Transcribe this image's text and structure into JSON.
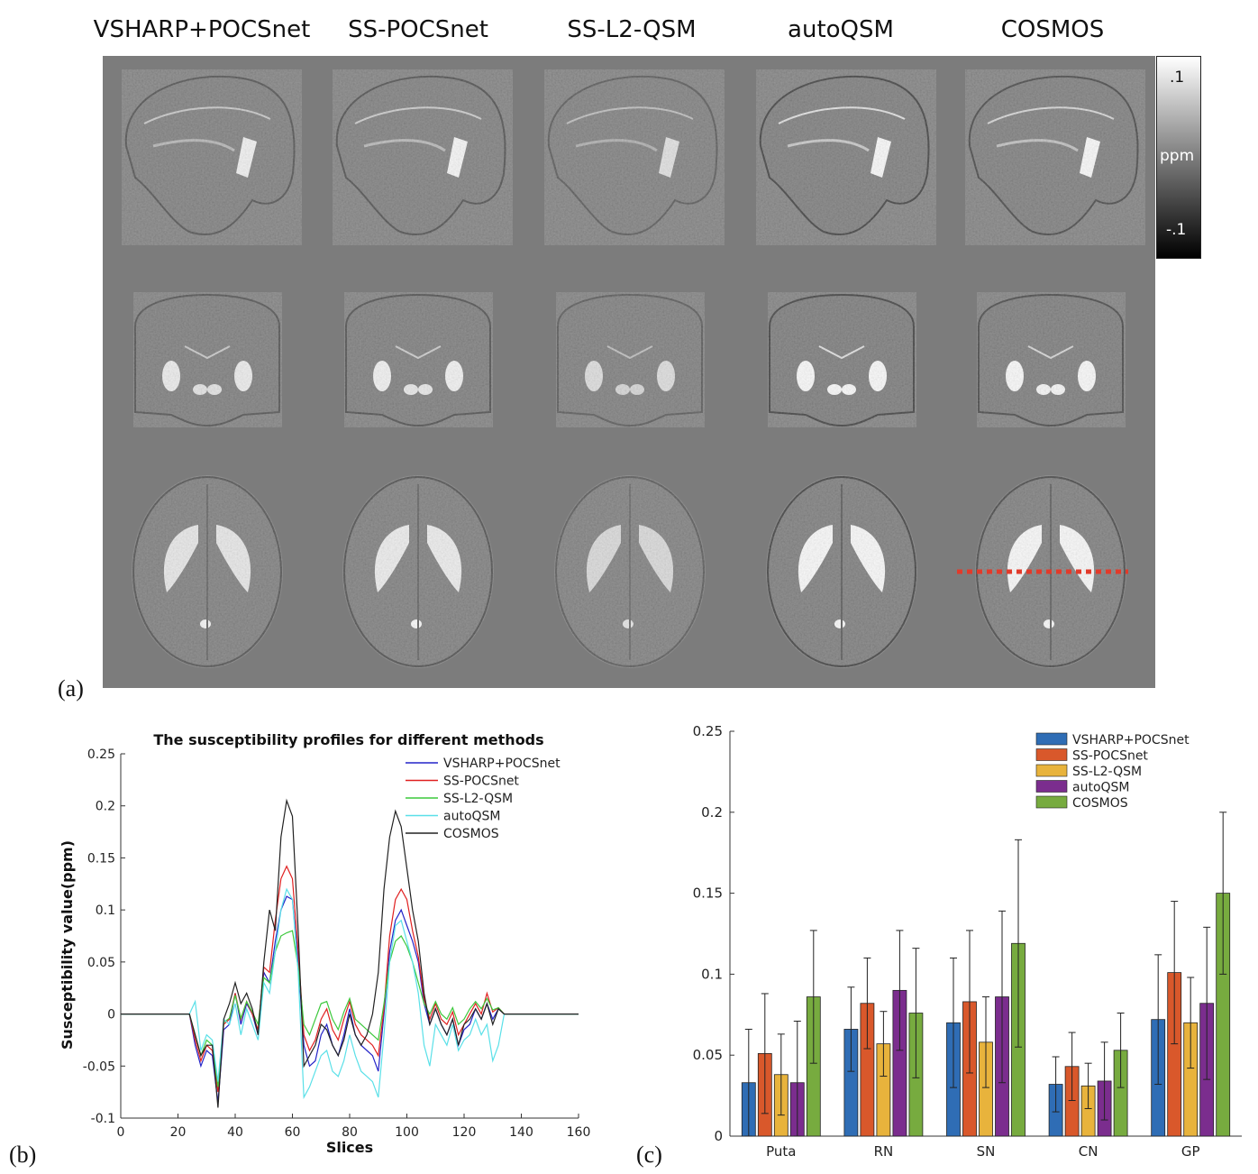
{
  "panel_a": {
    "column_titles": [
      "VSHARP+POCSnet",
      "SS-POCSnet",
      "SS-L2-QSM",
      "autoQSM",
      "COSMOS"
    ],
    "colorbar": {
      "top": ".1",
      "mid": "ppm",
      "bottom": "-.1"
    },
    "rows": [
      "sagittal",
      "coronal",
      "axial"
    ],
    "marker_color": "#e23a2a"
  },
  "panel_labels": {
    "a": "(a)",
    "b": "(b)",
    "c": "(c)"
  },
  "chart_data": [
    {
      "type": "line",
      "title": "The susceptibility profiles for different methods",
      "xlabel": "Slices",
      "ylabel": "Susceptibility value(ppm)",
      "xlim": [
        0,
        160
      ],
      "ylim": [
        -0.1,
        0.25
      ],
      "xticks": [
        "0",
        "20",
        "40",
        "60",
        "80",
        "100",
        "120",
        "140",
        "160"
      ],
      "yticks": [
        "-0.1",
        "-0.05",
        "0",
        "0.05",
        "0.1",
        "0.15",
        "0.2",
        "0.25"
      ],
      "legend_position": "top-right",
      "series": [
        {
          "name": "VSHARP+POCSnet",
          "color": "#2424c8",
          "x": [
            0,
            24,
            26,
            28,
            30,
            32,
            34,
            36,
            38,
            40,
            42,
            44,
            46,
            48,
            50,
            52,
            54,
            56,
            58,
            60,
            62,
            64,
            66,
            68,
            70,
            72,
            74,
            76,
            78,
            80,
            82,
            84,
            86,
            88,
            90,
            92,
            94,
            96,
            98,
            100,
            102,
            104,
            106,
            108,
            110,
            112,
            114,
            116,
            118,
            120,
            122,
            124,
            126,
            128,
            130,
            132,
            134,
            160
          ],
          "y": [
            0,
            0,
            -0.03,
            -0.05,
            -0.035,
            -0.04,
            -0.085,
            -0.015,
            -0.01,
            0.02,
            -0.01,
            0.01,
            0.0,
            -0.02,
            0.04,
            0.03,
            0.07,
            0.1,
            0.113,
            0.11,
            0.05,
            -0.03,
            -0.05,
            -0.045,
            -0.02,
            -0.01,
            -0.03,
            -0.04,
            -0.02,
            0.005,
            -0.02,
            -0.03,
            -0.035,
            -0.04,
            -0.055,
            0.0,
            0.06,
            0.09,
            0.1,
            0.085,
            0.07,
            0.05,
            0.01,
            -0.01,
            0.005,
            -0.01,
            -0.02,
            -0.005,
            -0.03,
            -0.015,
            -0.01,
            0.005,
            -0.005,
            0.01,
            -0.005,
            0.005,
            0,
            0
          ]
        },
        {
          "name": "SS-POCSnet",
          "color": "#e02020",
          "x": [
            0,
            24,
            26,
            28,
            30,
            32,
            34,
            36,
            38,
            40,
            42,
            44,
            46,
            48,
            50,
            52,
            54,
            56,
            58,
            60,
            62,
            64,
            66,
            68,
            70,
            72,
            74,
            76,
            78,
            80,
            82,
            84,
            86,
            88,
            90,
            92,
            94,
            96,
            98,
            100,
            102,
            104,
            106,
            108,
            110,
            112,
            114,
            116,
            118,
            120,
            122,
            124,
            126,
            128,
            130,
            132,
            134,
            160
          ],
          "y": [
            0,
            0,
            -0.025,
            -0.045,
            -0.03,
            -0.035,
            -0.075,
            -0.01,
            -0.005,
            0.02,
            -0.005,
            0.012,
            0.0,
            -0.015,
            0.045,
            0.04,
            0.09,
            0.13,
            0.142,
            0.13,
            0.06,
            -0.02,
            -0.035,
            -0.025,
            -0.005,
            0.005,
            -0.015,
            -0.025,
            -0.005,
            0.012,
            -0.01,
            -0.02,
            -0.025,
            -0.03,
            -0.04,
            0.005,
            0.075,
            0.11,
            0.12,
            0.11,
            0.08,
            0.055,
            0.015,
            -0.005,
            0.01,
            -0.005,
            -0.01,
            0.002,
            -0.02,
            -0.01,
            0.0,
            0.01,
            0.0,
            0.02,
            0.002,
            0.006,
            0,
            0
          ]
        },
        {
          "name": "SS-L2-QSM",
          "color": "#3cc83c",
          "x": [
            0,
            24,
            26,
            28,
            30,
            32,
            34,
            36,
            38,
            40,
            42,
            44,
            46,
            48,
            50,
            52,
            54,
            56,
            58,
            60,
            62,
            64,
            66,
            68,
            70,
            72,
            74,
            76,
            78,
            80,
            82,
            84,
            86,
            88,
            90,
            92,
            94,
            96,
            98,
            100,
            102,
            104,
            106,
            108,
            110,
            112,
            114,
            116,
            118,
            120,
            122,
            124,
            126,
            128,
            130,
            132,
            134,
            160
          ],
          "y": [
            0,
            0,
            -0.02,
            -0.04,
            -0.025,
            -0.03,
            -0.07,
            -0.008,
            -0.004,
            0.018,
            -0.004,
            0.012,
            0.002,
            -0.01,
            0.035,
            0.03,
            0.06,
            0.075,
            0.078,
            0.08,
            0.045,
            -0.01,
            -0.02,
            -0.005,
            0.01,
            0.012,
            -0.005,
            -0.015,
            0.002,
            0.015,
            -0.005,
            -0.01,
            -0.015,
            -0.02,
            -0.025,
            0.01,
            0.05,
            0.07,
            0.075,
            0.065,
            0.05,
            0.03,
            0.01,
            0.0,
            0.012,
            0.0,
            -0.005,
            0.006,
            -0.01,
            -0.005,
            0.005,
            0.012,
            0.005,
            0.015,
            0.004,
            0.006,
            0,
            0
          ]
        },
        {
          "name": "autoQSM",
          "color": "#5ae0e8",
          "x": [
            0,
            24,
            26,
            28,
            30,
            32,
            34,
            36,
            38,
            40,
            42,
            44,
            46,
            48,
            50,
            52,
            54,
            56,
            58,
            60,
            62,
            64,
            66,
            68,
            70,
            72,
            74,
            76,
            78,
            80,
            82,
            84,
            86,
            88,
            90,
            92,
            94,
            96,
            98,
            100,
            102,
            104,
            106,
            108,
            110,
            112,
            114,
            116,
            118,
            120,
            122,
            124,
            126,
            128,
            130,
            132,
            134,
            160
          ],
          "y": [
            0,
            0,
            0.012,
            -0.035,
            -0.02,
            -0.025,
            -0.065,
            -0.005,
            -0.01,
            0.01,
            -0.02,
            0.005,
            -0.01,
            -0.025,
            0.03,
            0.02,
            0.06,
            0.1,
            0.12,
            0.11,
            0.04,
            -0.08,
            -0.07,
            -0.055,
            -0.04,
            -0.035,
            -0.055,
            -0.06,
            -0.045,
            -0.02,
            -0.04,
            -0.055,
            -0.06,
            -0.065,
            -0.08,
            -0.02,
            0.05,
            0.085,
            0.09,
            0.07,
            0.05,
            0.02,
            -0.03,
            -0.05,
            -0.01,
            -0.02,
            -0.03,
            -0.01,
            -0.035,
            -0.025,
            -0.02,
            -0.005,
            -0.02,
            -0.01,
            -0.045,
            -0.03,
            0,
            0
          ]
        },
        {
          "name": "COSMOS",
          "color": "#222222",
          "x": [
            0,
            24,
            26,
            28,
            30,
            32,
            34,
            36,
            38,
            40,
            42,
            44,
            46,
            48,
            50,
            52,
            54,
            56,
            58,
            60,
            62,
            64,
            66,
            68,
            70,
            72,
            74,
            76,
            78,
            80,
            82,
            84,
            86,
            88,
            90,
            92,
            94,
            96,
            98,
            100,
            102,
            104,
            106,
            108,
            110,
            112,
            114,
            116,
            118,
            120,
            122,
            124,
            126,
            128,
            130,
            132,
            134,
            160
          ],
          "y": [
            0,
            0,
            -0.02,
            -0.04,
            -0.03,
            -0.03,
            -0.09,
            -0.005,
            0.01,
            0.03,
            0.01,
            0.02,
            0.005,
            -0.02,
            0.05,
            0.1,
            0.08,
            0.17,
            0.205,
            0.19,
            0.08,
            -0.05,
            -0.04,
            -0.03,
            -0.01,
            -0.015,
            -0.03,
            -0.04,
            -0.025,
            0.0,
            -0.02,
            -0.03,
            -0.02,
            0.0,
            0.04,
            0.12,
            0.17,
            0.195,
            0.18,
            0.14,
            0.1,
            0.07,
            0.02,
            -0.01,
            0.005,
            -0.01,
            -0.02,
            -0.005,
            -0.03,
            -0.01,
            -0.005,
            0.005,
            -0.005,
            0.01,
            -0.01,
            0.005,
            0,
            0
          ]
        }
      ]
    },
    {
      "type": "bar",
      "title": "",
      "xlabel": "",
      "ylabel": "",
      "ylim": [
        0,
        0.25
      ],
      "yticks": [
        "0",
        "0.05",
        "0.1",
        "0.15",
        "0.2",
        "0.25"
      ],
      "legend_position": "top-right",
      "categories": [
        "Puta",
        "RN",
        "SN",
        "CN",
        "GP"
      ],
      "series": [
        {
          "name": "VSHARP+POCSnet",
          "color": "#2f6db5",
          "values": [
            0.033,
            0.066,
            0.07,
            0.032,
            0.072
          ],
          "err": [
            0.033,
            0.026,
            0.04,
            0.017,
            0.04
          ]
        },
        {
          "name": "SS-POCSnet",
          "color": "#d9582b",
          "values": [
            0.051,
            0.082,
            0.083,
            0.043,
            0.101
          ],
          "err": [
            0.037,
            0.028,
            0.044,
            0.021,
            0.044
          ]
        },
        {
          "name": "SS-L2-QSM",
          "color": "#e8b33c",
          "values": [
            0.038,
            0.057,
            0.058,
            0.031,
            0.07
          ],
          "err": [
            0.025,
            0.02,
            0.028,
            0.014,
            0.028
          ]
        },
        {
          "name": "autoQSM",
          "color": "#7b2d8e",
          "values": [
            0.033,
            0.09,
            0.086,
            0.034,
            0.082
          ],
          "err": [
            0.038,
            0.037,
            0.053,
            0.024,
            0.047
          ]
        },
        {
          "name": "COSMOS",
          "color": "#77ab3f",
          "values": [
            0.086,
            0.076,
            0.119,
            0.053,
            0.15
          ],
          "err": [
            0.041,
            0.04,
            0.064,
            0.023,
            0.05
          ]
        }
      ]
    }
  ]
}
